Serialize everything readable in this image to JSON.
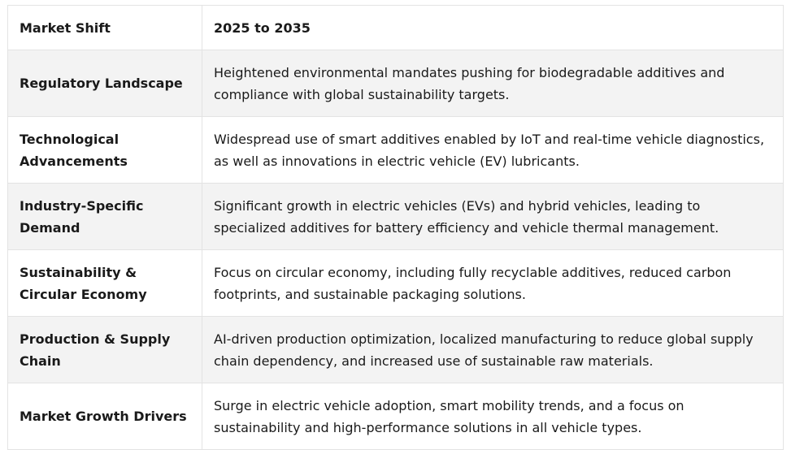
{
  "table": {
    "headers": [
      "Market Shift",
      "2025 to 2035"
    ],
    "rows": [
      {
        "label": "Regulatory Landscape",
        "value": "Heightened environmental mandates pushing for biodegradable additives and compliance with global sustainability targets."
      },
      {
        "label": "Technological Advancements",
        "value": "Widespread use of smart additives enabled by IoT and real-time vehicle diagnostics, as well as innovations in electric vehicle (EV) lubricants."
      },
      {
        "label": "Industry-Specific Demand",
        "value": "Significant growth in electric vehicles (EVs) and hybrid vehicles, leading to specialized additives for battery efficiency and vehicle thermal management."
      },
      {
        "label": "Sustainability & Circular Economy",
        "value": "Focus on circular economy, including fully recyclable additives, reduced carbon footprints, and sustainable packaging solutions."
      },
      {
        "label": "Production & Supply Chain",
        "value": "AI-driven production optimization, localized manufacturing to reduce global supply chain dependency, and increased use of sustainable raw materials."
      },
      {
        "label": "Market Growth Drivers",
        "value": "Surge in electric vehicle adoption, smart mobility trends, and a focus on sustainability and high-performance solutions in all vehicle types."
      }
    ]
  }
}
